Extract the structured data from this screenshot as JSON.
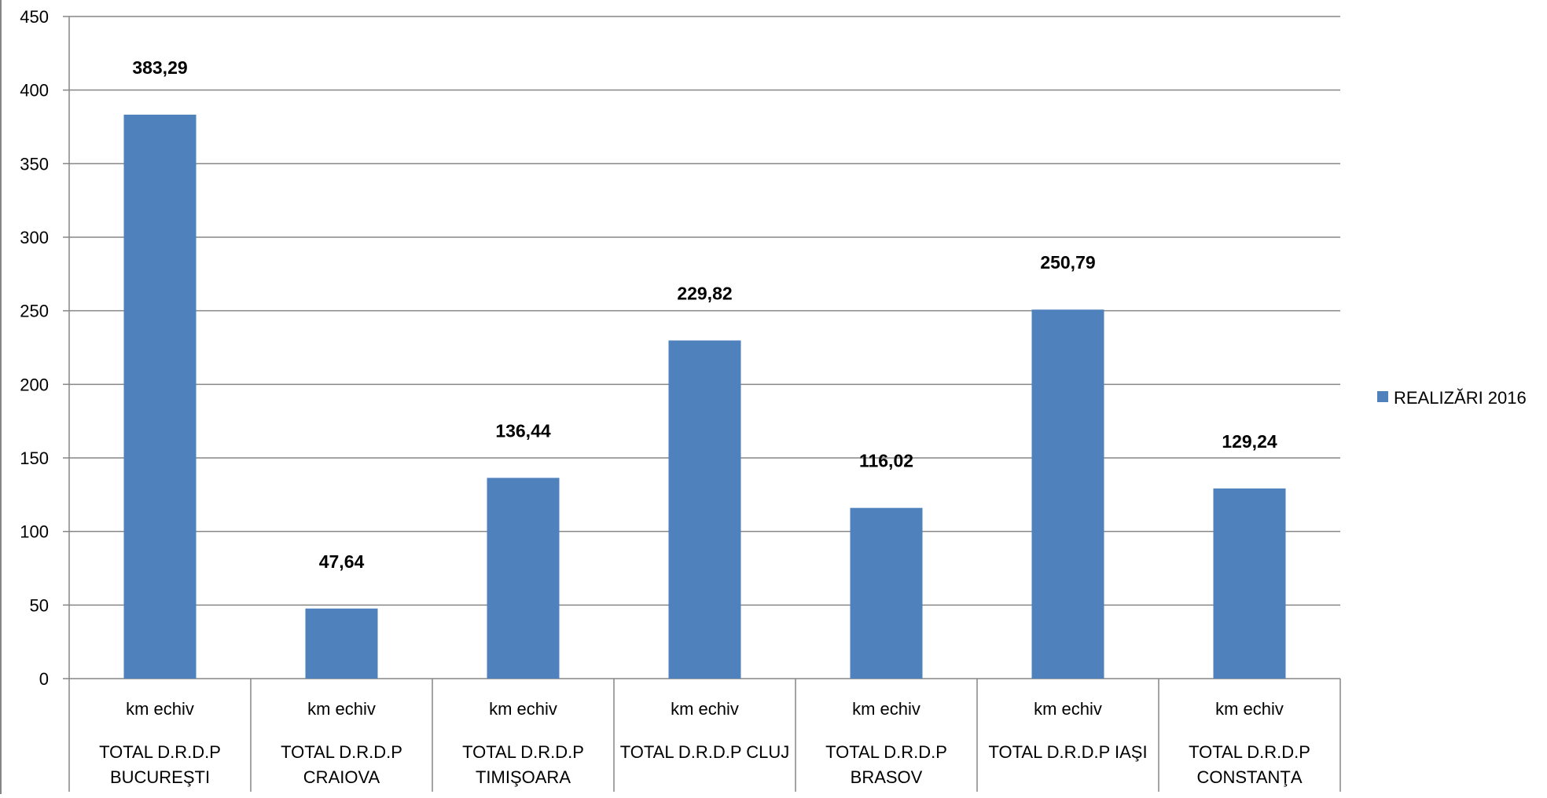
{
  "chart_data": {
    "type": "bar",
    "categories": [
      {
        "unit": "km echiv",
        "name_lines": [
          "TOTAL D.R.D.P",
          "BUCUREŞTI"
        ]
      },
      {
        "unit": "km echiv",
        "name_lines": [
          "TOTAL D.R.D.P",
          "CRAIOVA"
        ]
      },
      {
        "unit": "km echiv",
        "name_lines": [
          "TOTAL D.R.D.P",
          "TIMIŞOARA"
        ]
      },
      {
        "unit": "km echiv",
        "name_lines": [
          "TOTAL D.R.D.P CLUJ"
        ]
      },
      {
        "unit": "km echiv",
        "name_lines": [
          "TOTAL D.R.D.P",
          "BRASOV"
        ]
      },
      {
        "unit": "km echiv",
        "name_lines": [
          "TOTAL D.R.D.P IAŞI"
        ]
      },
      {
        "unit": "km echiv",
        "name_lines": [
          "TOTAL D.R.D.P",
          "CONSTANŢA"
        ]
      }
    ],
    "series": [
      {
        "name": "REALIZĂRI 2016",
        "color": "#4F81BD",
        "values": [
          383.29,
          47.64,
          136.44,
          229.82,
          116.02,
          250.79,
          129.24
        ],
        "value_labels": [
          "383,29",
          "47,64",
          "136,44",
          "229,82",
          "116,02",
          "250,79",
          "129,24"
        ]
      }
    ],
    "ylim": [
      0,
      450
    ],
    "yticks": [
      0,
      50,
      100,
      150,
      200,
      250,
      300,
      350,
      400,
      450
    ],
    "grid": true,
    "legend_position": "right",
    "gridline_color": "#868686"
  }
}
